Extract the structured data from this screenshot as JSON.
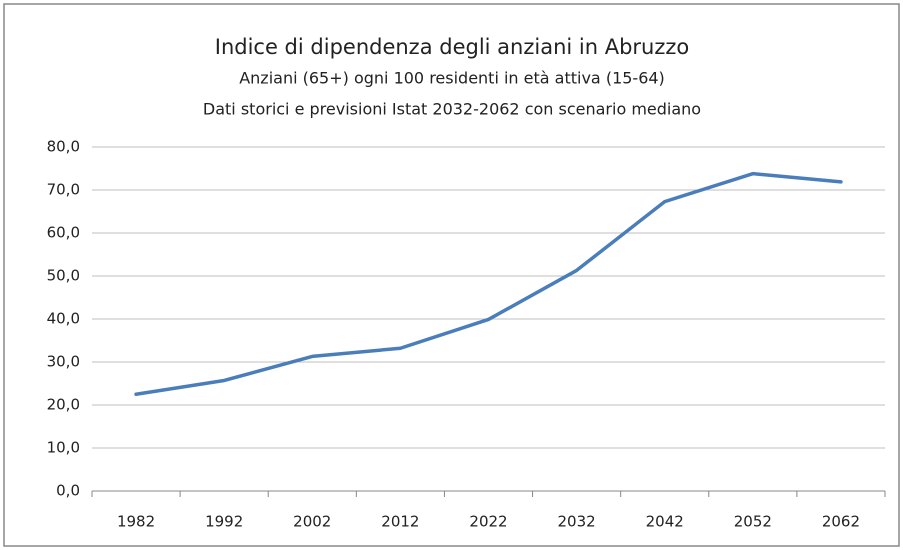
{
  "chart_data": {
    "type": "line",
    "title": "Indice di dipendenza degli anziani in Abruzzo",
    "subtitle": [
      "Anziani (65+) ogni 100 residenti in età attiva (15-64)",
      "Dati storici e previsioni Istat 2032-2062 con scenario mediano"
    ],
    "categories": [
      "1982",
      "1992",
      "2002",
      "2012",
      "2022",
      "2032",
      "2042",
      "2052",
      "2062"
    ],
    "values": [
      22.5,
      25.7,
      31.3,
      33.2,
      39.9,
      51.3,
      67.3,
      73.8,
      71.9
    ],
    "color": "#4a7ebb",
    "ylim": [
      0,
      80
    ],
    "yticks": [
      {
        "value": 0,
        "label": "0,0"
      },
      {
        "value": 10,
        "label": "10,0"
      },
      {
        "value": 20,
        "label": "20,0"
      },
      {
        "value": 30,
        "label": "30,0"
      },
      {
        "value": 40,
        "label": "40,0"
      },
      {
        "value": 50,
        "label": "50,0"
      },
      {
        "value": 60,
        "label": "60,0"
      },
      {
        "value": 70,
        "label": "70,0"
      },
      {
        "value": 80,
        "label": "80,0"
      }
    ],
    "grid": true
  }
}
